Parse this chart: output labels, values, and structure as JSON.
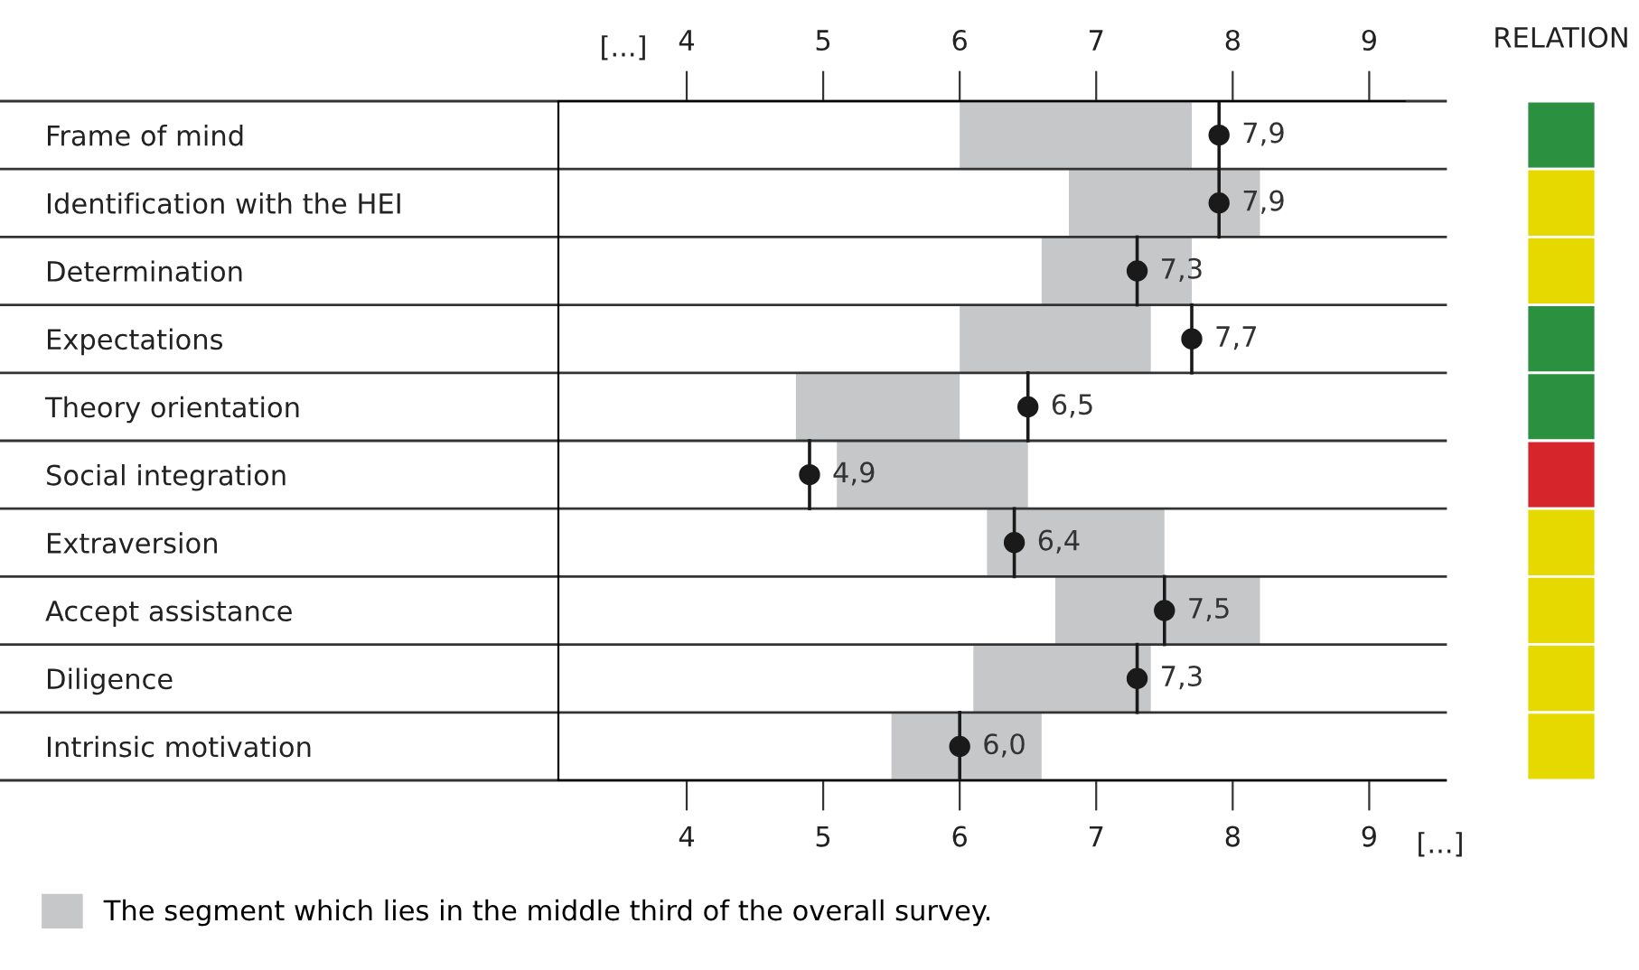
{
  "chart_data": [
    {
      "type": "bar",
      "orientation": "horizontal",
      "categories": [
        "Frame of mind",
        "Identification with the HEI",
        "Determination",
        "Expectations",
        "Theory orientation",
        "Social integration",
        "Extraversion",
        "Accept assistance",
        "Diligence",
        "Intrinsic motivation"
      ],
      "series": [
        {
          "name": "The segment which lies in the middle third of the overall survey.",
          "color": "#c6c7c9",
          "base": [
            6.0,
            6.8,
            6.6,
            6.0,
            4.8,
            5.1,
            6.2,
            6.7,
            6.1,
            5.5
          ],
          "values": [
            1.7,
            1.4,
            1.1,
            1.4,
            1.2,
            1.4,
            1.3,
            1.5,
            1.3,
            1.1
          ]
        },
        {
          "type": "scatter",
          "color": "#1a1a1a",
          "marker": "circle",
          "values": [
            7.9,
            7.9,
            7.3,
            7.7,
            6.5,
            4.9,
            6.4,
            7.5,
            7.3,
            6.0
          ],
          "value_labels": [
            "7,9",
            "7,9",
            "7,3",
            "7,7",
            "6,5",
            "4,9",
            "6,4",
            "7,5",
            "7,3",
            "6,0"
          ]
        }
      ],
      "xlim": [
        3.06,
        9.56
      ],
      "xticks": [
        4,
        5,
        6,
        7,
        8,
        9
      ],
      "x2lim": [
        3.06,
        9.56
      ],
      "x2ticks": [
        4,
        5,
        6,
        7,
        8,
        9
      ],
      "annotations": [
        "[...]",
        "[...]"
      ],
      "grid": false,
      "legend": "bottom left"
    },
    {
      "type": "other",
      "title": "RELATION",
      "colors": [
        "#2b9140",
        "#e6d900",
        "#e6d900",
        "#2b9140",
        "#2b9140",
        "#d7262b",
        "#e6d900",
        "#e6d900",
        "#e6d900",
        "#e6d900"
      ]
    }
  ]
}
